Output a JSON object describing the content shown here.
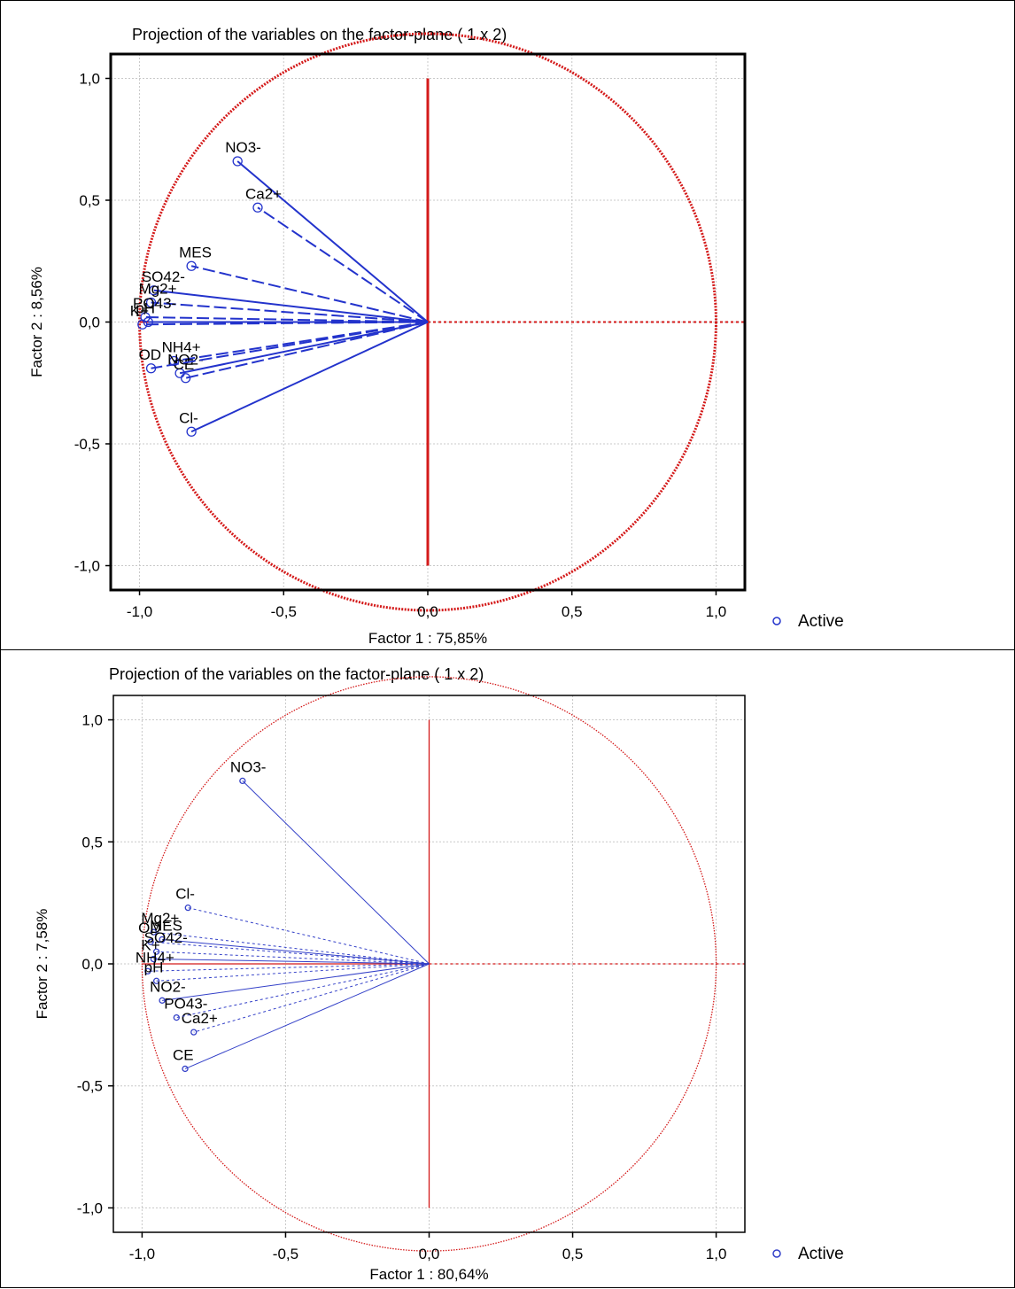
{
  "chart_data": [
    {
      "type": "scatter",
      "title": "Projection of the variables on the factor-plane (  1 x   2)",
      "xlabel": "Factor 1 : 75,85%",
      "ylabel": "Factor 2 :  8,56%",
      "xlim": [
        -1.1,
        1.1
      ],
      "ylim": [
        -1.1,
        1.1
      ],
      "xticks": [
        "-1,0",
        "-0,5",
        "0,0",
        "0,5",
        "1,0"
      ],
      "yticks": [
        "1,0",
        "0,5",
        "0,0",
        "-0,5",
        "-1,0"
      ],
      "grid": true,
      "unit_circle": true,
      "legend": "Active",
      "legend_position": "bottom-right",
      "points": [
        {
          "label": "NO3-",
          "x": -0.66,
          "y": 0.66
        },
        {
          "label": "Ca2+",
          "x": -0.59,
          "y": 0.47
        },
        {
          "label": "MES",
          "x": -0.82,
          "y": 0.23
        },
        {
          "label": "SO42-",
          "x": -0.95,
          "y": 0.13
        },
        {
          "label": "Mg2+",
          "x": -0.96,
          "y": 0.08
        },
        {
          "label": "PO43-",
          "x": -0.98,
          "y": 0.02
        },
        {
          "label": "pH",
          "x": -0.97,
          "y": 0.0
        },
        {
          "label": "K+",
          "x": -0.99,
          "y": -0.01
        },
        {
          "label": "NH4+",
          "x": -0.88,
          "y": -0.16
        },
        {
          "label": "NO2-",
          "x": -0.86,
          "y": -0.21
        },
        {
          "label": "CE",
          "x": -0.84,
          "y": -0.23
        },
        {
          "label": "OD",
          "x": -0.96,
          "y": -0.19
        },
        {
          "label": "Cl-",
          "x": -0.82,
          "y": -0.45
        }
      ]
    },
    {
      "type": "scatter",
      "title": "Projection of the variables on the factor-plane (  1 x   2)",
      "xlabel": "Factor 1 : 80,64%",
      "ylabel": "Factor 2 :  7,58%",
      "xlim": [
        -1.1,
        1.1
      ],
      "ylim": [
        -1.1,
        1.1
      ],
      "xticks": [
        "-1,0",
        "-0,5",
        "0,0",
        "0,5",
        "1,0"
      ],
      "yticks": [
        "1,0",
        "0,5",
        "0,0",
        "-0,5",
        "-1,0"
      ],
      "grid": true,
      "unit_circle": true,
      "legend": "Active",
      "legend_position": "bottom-right",
      "points": [
        {
          "label": "NO3-",
          "x": -0.65,
          "y": 0.75
        },
        {
          "label": "Cl-",
          "x": -0.84,
          "y": 0.23
        },
        {
          "label": "Mg2+",
          "x": -0.96,
          "y": 0.13
        },
        {
          "label": "MES",
          "x": -0.93,
          "y": 0.1
        },
        {
          "label": "OD",
          "x": -0.97,
          "y": 0.09
        },
        {
          "label": "SO42-",
          "x": -0.95,
          "y": 0.05
        },
        {
          "label": "K+",
          "x": -0.96,
          "y": 0.02
        },
        {
          "label": "NH4+",
          "x": -0.98,
          "y": -0.03
        },
        {
          "label": "pH",
          "x": -0.95,
          "y": -0.07
        },
        {
          "label": "NO2-",
          "x": -0.93,
          "y": -0.15
        },
        {
          "label": "Ca2+",
          "x": -0.82,
          "y": -0.28
        },
        {
          "label": "PO43-",
          "x": -0.88,
          "y": -0.22
        },
        {
          "label": "CE",
          "x": -0.85,
          "y": -0.43
        }
      ]
    }
  ]
}
